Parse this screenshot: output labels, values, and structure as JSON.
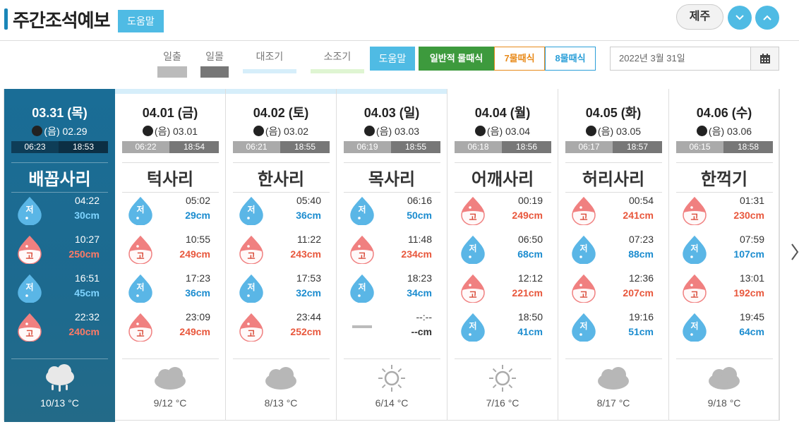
{
  "header": {
    "title": "주간조석예보",
    "help_label": "도움말",
    "region": "제주"
  },
  "legend": {
    "sunrise": "일출",
    "sunset": "일몰",
    "spring_tide": "대조기",
    "neap_tide": "소조기",
    "help_label": "도움말",
    "modes": [
      "일반적 물때식",
      "7물때식",
      "8물때식"
    ],
    "date_value": "2022년 3월 31일",
    "colors": {
      "sunrise": "#bbbbbb",
      "sunset": "#888888",
      "spring": "#d6eefa",
      "neap": "#dff5d2",
      "mode1": "#3d9a3d",
      "mode2": "#e88a1a",
      "mode3": "#2b9fd8"
    }
  },
  "days": [
    {
      "date": "03.31 (목)",
      "lunar": "(음) 02.29",
      "sunrise": "06:23",
      "sunset": "18:53",
      "phase": "배꼽사리",
      "today": true,
      "spring": false,
      "tides": [
        {
          "type": "low",
          "label": "저",
          "time": "04:22",
          "level": "30cm"
        },
        {
          "type": "high",
          "label": "고",
          "time": "10:27",
          "level": "250cm"
        },
        {
          "type": "low",
          "label": "저",
          "time": "16:51",
          "level": "45cm"
        },
        {
          "type": "high",
          "label": "고",
          "time": "22:32",
          "level": "240cm"
        }
      ],
      "weather": "rain-cloud-icon",
      "temp": "10/13 °C"
    },
    {
      "date": "04.01 (금)",
      "lunar": "(음) 03.01",
      "sunrise": "06:22",
      "sunset": "18:54",
      "phase": "턱사리",
      "today": false,
      "spring": true,
      "tides": [
        {
          "type": "low",
          "label": "저",
          "time": "05:02",
          "level": "29cm"
        },
        {
          "type": "high",
          "label": "고",
          "time": "10:55",
          "level": "249cm"
        },
        {
          "type": "low",
          "label": "저",
          "time": "17:23",
          "level": "36cm"
        },
        {
          "type": "high",
          "label": "고",
          "time": "23:09",
          "level": "249cm"
        }
      ],
      "weather": "cloud-icon",
      "temp": "9/12 °C"
    },
    {
      "date": "04.02 (토)",
      "lunar": "(음) 03.02",
      "sunrise": "06:21",
      "sunset": "18:55",
      "phase": "한사리",
      "today": false,
      "spring": true,
      "tides": [
        {
          "type": "low",
          "label": "저",
          "time": "05:40",
          "level": "36cm"
        },
        {
          "type": "high",
          "label": "고",
          "time": "11:22",
          "level": "243cm"
        },
        {
          "type": "low",
          "label": "저",
          "time": "17:53",
          "level": "32cm"
        },
        {
          "type": "high",
          "label": "고",
          "time": "23:44",
          "level": "252cm"
        }
      ],
      "weather": "cloud-icon",
      "temp": "8/13 °C"
    },
    {
      "date": "04.03 (일)",
      "lunar": "(음) 03.03",
      "sunrise": "06:19",
      "sunset": "18:55",
      "phase": "목사리",
      "today": false,
      "spring": true,
      "tides": [
        {
          "type": "low",
          "label": "저",
          "time": "06:16",
          "level": "50cm"
        },
        {
          "type": "high",
          "label": "고",
          "time": "11:48",
          "level": "234cm"
        },
        {
          "type": "low",
          "label": "저",
          "time": "18:23",
          "level": "34cm"
        },
        {
          "type": "none",
          "label": "",
          "time": "--:--",
          "level": "--cm"
        }
      ],
      "weather": "sun-icon",
      "temp": "6/14 °C"
    },
    {
      "date": "04.04 (월)",
      "lunar": "(음) 03.04",
      "sunrise": "06:18",
      "sunset": "18:56",
      "phase": "어깨사리",
      "today": false,
      "spring": false,
      "tides": [
        {
          "type": "high",
          "label": "고",
          "time": "00:19",
          "level": "249cm"
        },
        {
          "type": "low",
          "label": "저",
          "time": "06:50",
          "level": "68cm"
        },
        {
          "type": "high",
          "label": "고",
          "time": "12:12",
          "level": "221cm"
        },
        {
          "type": "low",
          "label": "저",
          "time": "18:50",
          "level": "41cm"
        }
      ],
      "weather": "sun-icon",
      "temp": "7/16 °C"
    },
    {
      "date": "04.05 (화)",
      "lunar": "(음) 03.05",
      "sunrise": "06:17",
      "sunset": "18:57",
      "phase": "허리사리",
      "today": false,
      "spring": false,
      "tides": [
        {
          "type": "high",
          "label": "고",
          "time": "00:54",
          "level": "241cm"
        },
        {
          "type": "low",
          "label": "저",
          "time": "07:23",
          "level": "88cm"
        },
        {
          "type": "high",
          "label": "고",
          "time": "12:36",
          "level": "207cm"
        },
        {
          "type": "low",
          "label": "저",
          "time": "19:16",
          "level": "51cm"
        }
      ],
      "weather": "cloud-icon",
      "temp": "8/17 °C"
    },
    {
      "date": "04.06 (수)",
      "lunar": "(음) 03.06",
      "sunrise": "06:15",
      "sunset": "18:58",
      "phase": "한꺽기",
      "today": false,
      "spring": false,
      "tides": [
        {
          "type": "high",
          "label": "고",
          "time": "01:31",
          "level": "230cm"
        },
        {
          "type": "low",
          "label": "저",
          "time": "07:59",
          "level": "107cm"
        },
        {
          "type": "high",
          "label": "고",
          "time": "13:01",
          "level": "192cm"
        },
        {
          "type": "low",
          "label": "저",
          "time": "19:45",
          "level": "64cm"
        }
      ],
      "weather": "cloud-icon",
      "temp": "9/18 °C"
    }
  ]
}
